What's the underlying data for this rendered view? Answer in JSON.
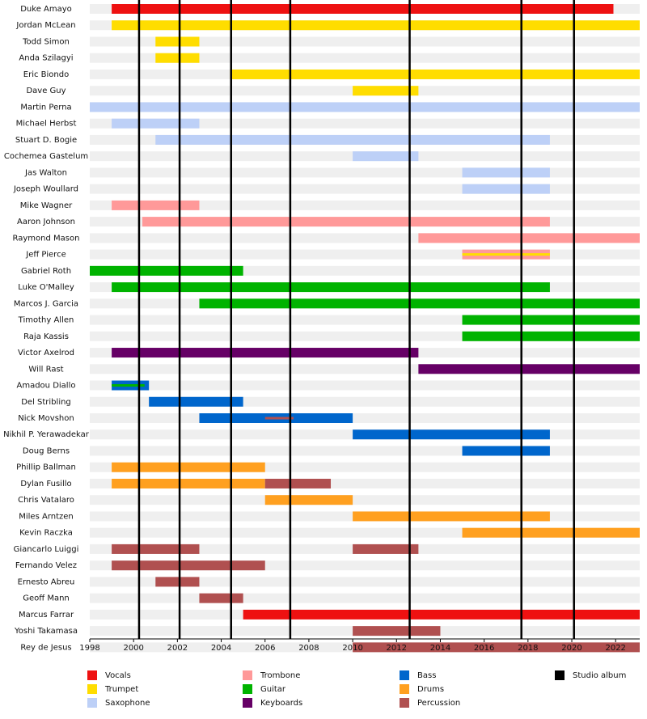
{
  "chart_data": {
    "type": "timeline",
    "categories": [
      "Duke Amayo",
      "Jordan McLean",
      "Todd Simon",
      "Anda Szilagyi",
      "Eric Biondo",
      "Dave Guy",
      "Martin Perna",
      "Michael Herbst",
      "Stuart D. Bogie",
      "Cochemea Gastelum",
      "Jas Walton",
      "Joseph Woullard",
      "Mike Wagner",
      "Aaron Johnson",
      "Raymond Mason",
      "Jeff Pierce",
      "Gabriel Roth",
      "Luke O'Malley",
      "Marcos J. Garcia",
      "Timothy Allen",
      "Raja Kassis",
      "Victor Axelrod",
      "Will Rast",
      "Amadou Diallo",
      "Del Stribling",
      "Nick Movshon",
      "Nikhil P. Yerawadekar",
      "Doug Berns",
      "Phillip Ballman",
      "Dylan Fusillo",
      "Chris Vatalaro",
      "Miles Arntzen",
      "Kevin Raczka",
      "Giancarlo Luiggi",
      "Fernando Velez",
      "Ernesto Abreu",
      "Geoff Mann",
      "Marcus Farrar",
      "Yoshi Takamasa",
      "Rey de Jesus"
    ],
    "series": [
      {
        "name": "Vocals",
        "color": "#ee1111",
        "values": [
          [
            [
              1999,
              2021.9
            ]
          ],
          null,
          null,
          null,
          null,
          null,
          null,
          null,
          null,
          null,
          null,
          null,
          null,
          null,
          null,
          null,
          null,
          null,
          null,
          null,
          null,
          null,
          null,
          null,
          null,
          null,
          null,
          null,
          null,
          null,
          null,
          null,
          null,
          null,
          null,
          null,
          null,
          [
            [
              2005,
              2023.1
            ]
          ],
          null,
          null
        ]
      },
      {
        "name": "Trumpet",
        "color": "#ffdd00",
        "values": [
          null,
          [
            [
              1999,
              2023.1
            ]
          ],
          [
            [
              2001,
              2003
            ]
          ],
          [
            [
              2001,
              2003
            ]
          ],
          [
            [
              2004.4,
              2023.1
            ]
          ],
          [
            [
              2010,
              2013
            ]
          ],
          null,
          null,
          null,
          null,
          null,
          null,
          null,
          null,
          null,
          [
            [
              2015,
              2019
            ]
          ],
          null,
          null,
          null,
          null,
          null,
          null,
          null,
          null,
          null,
          null,
          null,
          null,
          null,
          null,
          null,
          null,
          null,
          null,
          null,
          null,
          null,
          null,
          null,
          null
        ]
      },
      {
        "name": "Saxophone",
        "color": "#bdd0f7",
        "values": [
          null,
          null,
          null,
          null,
          null,
          null,
          [
            [
              1998,
              2023.1
            ]
          ],
          [
            [
              1999,
              2003
            ]
          ],
          [
            [
              2001,
              2019
            ]
          ],
          [
            [
              2010,
              2013
            ]
          ],
          [
            [
              2015,
              2019
            ]
          ],
          [
            [
              2015,
              2019
            ]
          ],
          null,
          null,
          null,
          null,
          null,
          null,
          null,
          null,
          null,
          null,
          null,
          null,
          null,
          null,
          null,
          null,
          null,
          null,
          null,
          null,
          null,
          null,
          null,
          null,
          null,
          null,
          null,
          null
        ]
      },
      {
        "name": "Trombone",
        "color": "#ff9999",
        "values": [
          null,
          null,
          null,
          null,
          null,
          null,
          null,
          null,
          null,
          null,
          null,
          null,
          [
            [
              1999,
              2003
            ]
          ],
          [
            [
              2000.4,
              2019
            ]
          ],
          [
            [
              2013,
              2023.1
            ]
          ],
          [
            [
              2015,
              2019
            ]
          ],
          null,
          null,
          null,
          null,
          null,
          null,
          null,
          null,
          null,
          null,
          null,
          null,
          null,
          null,
          null,
          null,
          null,
          null,
          null,
          null,
          null,
          null,
          null,
          null
        ]
      },
      {
        "name": "Guitar",
        "color": "#00b300",
        "values": [
          null,
          null,
          null,
          null,
          null,
          null,
          null,
          null,
          null,
          null,
          null,
          null,
          null,
          null,
          null,
          null,
          [
            [
              1998,
              2005
            ]
          ],
          [
            [
              1999,
              2019
            ]
          ],
          [
            [
              2003,
              2023.1
            ]
          ],
          [
            [
              2015,
              2023.1
            ]
          ],
          [
            [
              2015,
              2023.1
            ]
          ],
          null,
          null,
          [
            [
              1999,
              2000.5
            ]
          ],
          null,
          null,
          null,
          null,
          null,
          null,
          null,
          null,
          null,
          null,
          null,
          null,
          null,
          null,
          null,
          null
        ]
      },
      {
        "name": "Keyboards",
        "color": "#660066",
        "values": [
          null,
          null,
          null,
          null,
          null,
          null,
          null,
          null,
          null,
          null,
          null,
          null,
          null,
          null,
          null,
          null,
          null,
          null,
          null,
          null,
          null,
          [
            [
              1999,
              2013
            ]
          ],
          [
            [
              2013,
              2023.1
            ]
          ],
          null,
          null,
          null,
          null,
          null,
          null,
          null,
          null,
          null,
          null,
          null,
          null,
          null,
          null,
          null,
          null,
          null
        ]
      },
      {
        "name": "Bass",
        "color": "#0066cc",
        "values": [
          null,
          null,
          null,
          null,
          null,
          null,
          null,
          null,
          null,
          null,
          null,
          null,
          null,
          null,
          null,
          null,
          null,
          null,
          null,
          null,
          null,
          null,
          null,
          [
            [
              1999,
              2000.7
            ]
          ],
          [
            [
              2000.7,
              2005
            ]
          ],
          [
            [
              2003,
              2010
            ]
          ],
          [
            [
              2010,
              2019
            ]
          ],
          [
            [
              2015,
              2019
            ]
          ],
          null,
          null,
          null,
          null,
          null,
          null,
          null,
          null,
          null,
          null,
          null,
          null
        ]
      },
      {
        "name": "Drums",
        "color": "#ffa020",
        "values": [
          null,
          null,
          null,
          null,
          null,
          null,
          null,
          null,
          null,
          null,
          null,
          null,
          null,
          null,
          null,
          null,
          null,
          null,
          null,
          null,
          null,
          null,
          null,
          null,
          null,
          null,
          null,
          null,
          [
            [
              1999,
              2006
            ]
          ],
          [
            [
              1999,
              2006
            ]
          ],
          [
            [
              2006,
              2010
            ]
          ],
          [
            [
              2010,
              2019
            ]
          ],
          [
            [
              2015,
              2023.1
            ]
          ],
          null,
          null,
          null,
          null,
          null,
          null,
          null
        ]
      },
      {
        "name": "Percussion",
        "color": "#b05050",
        "values": [
          null,
          null,
          null,
          null,
          null,
          null,
          null,
          null,
          null,
          null,
          null,
          null,
          null,
          null,
          null,
          null,
          null,
          null,
          null,
          null,
          null,
          null,
          null,
          null,
          null,
          [
            [
              2006,
              2007.3
            ]
          ],
          null,
          null,
          null,
          [
            [
              2006,
              2009
            ]
          ],
          null,
          null,
          null,
          [
            [
              1999,
              2003
            ],
            [
              2010,
              2013
            ]
          ],
          [
            [
              1999,
              2006
            ]
          ],
          [
            [
              2001,
              2003
            ]
          ],
          [
            [
              2003,
              2005
            ]
          ],
          null,
          [
            [
              2010,
              2014
            ]
          ],
          [
            [
              2010,
              2023.1
            ]
          ]
        ]
      }
    ],
    "albums": {
      "name": "Studio album",
      "color": "#000000",
      "values": [
        2000.25,
        2002.1,
        2004.45,
        2007.15,
        2012.6,
        2017.7,
        2020.1
      ]
    },
    "xlim": [
      1998,
      2023.1
    ],
    "xticks": [
      1998,
      2000,
      2002,
      2004,
      2006,
      2008,
      2010,
      2012,
      2014,
      2016,
      2018,
      2020,
      2022
    ]
  }
}
